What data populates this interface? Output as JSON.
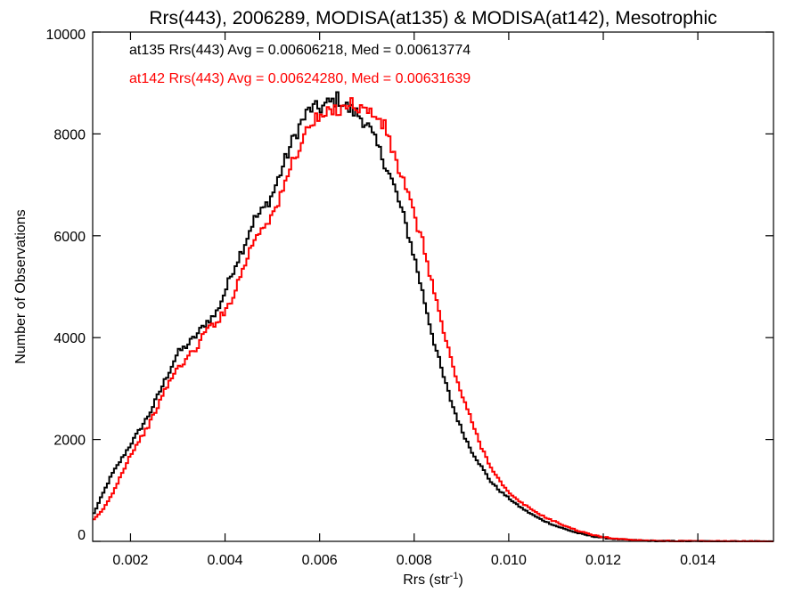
{
  "chart_data": {
    "type": "line",
    "title": "Rrs(443), 2006289, MODISA(at135) & MODISA(at142), Mesotrophic",
    "xlabel": "Rrs (str",
    "xlabel_superscript": "-1",
    "xlabel_suffix": ")",
    "ylabel": "Number of Observations",
    "xlim": [
      0.0012,
      0.0156
    ],
    "ylim": [
      0,
      10000
    ],
    "x_ticks": [
      0.002,
      0.004,
      0.006,
      0.008,
      0.01,
      0.012,
      0.014
    ],
    "x_tick_labels": [
      "0.002",
      "0.004",
      "0.006",
      "0.008",
      "0.010",
      "0.012",
      "0.014"
    ],
    "y_ticks": [
      0,
      2000,
      4000,
      6000,
      8000,
      10000
    ],
    "y_tick_labels": [
      "0",
      "2000",
      "4000",
      "6000",
      "8000",
      "10000"
    ],
    "grid": false,
    "legend_position": "top-left",
    "line_style": "step",
    "bin_width": 5e-05,
    "series": [
      {
        "name": "at135 Rrs(443) Avg = 0.00606218, Med = 0.00613774",
        "color": "#000000",
        "x": [
          0.0012,
          0.0014,
          0.0016,
          0.0018,
          0.002,
          0.0022,
          0.0024,
          0.0026,
          0.0028,
          0.003,
          0.0032,
          0.0034,
          0.0036,
          0.0038,
          0.004,
          0.0042,
          0.0044,
          0.0046,
          0.0048,
          0.005,
          0.0052,
          0.0054,
          0.0056,
          0.0058,
          0.006,
          0.0062,
          0.0064,
          0.0066,
          0.0068,
          0.007,
          0.0072,
          0.0074,
          0.0076,
          0.0078,
          0.008,
          0.0082,
          0.0084,
          0.0086,
          0.0088,
          0.009,
          0.0092,
          0.0094,
          0.0096,
          0.0098,
          0.01,
          0.0102,
          0.0104,
          0.0106,
          0.0108,
          0.011,
          0.0112,
          0.0114,
          0.0116,
          0.0118,
          0.012,
          0.0122,
          0.0124,
          0.0126,
          0.0128,
          0.013,
          0.0132,
          0.0134,
          0.0136,
          0.0138,
          0.014,
          0.0142,
          0.0144,
          0.0146,
          0.0148,
          0.015,
          0.0152,
          0.0154,
          0.0156
        ],
        "values": [
          500,
          900,
          1300,
          1600,
          1900,
          2200,
          2500,
          2900,
          3300,
          3700,
          3850,
          4050,
          4300,
          4450,
          4900,
          5400,
          5800,
          6300,
          6500,
          6800,
          7300,
          7800,
          8200,
          8500,
          8500,
          8600,
          8700,
          8500,
          8400,
          8200,
          7800,
          7400,
          6900,
          6300,
          5600,
          4800,
          4000,
          3300,
          2700,
          2200,
          1800,
          1500,
          1200,
          1000,
          850,
          700,
          580,
          470,
          380,
          300,
          240,
          180,
          130,
          95,
          70,
          50,
          35,
          25,
          18,
          12,
          8,
          6,
          4,
          3,
          2,
          1,
          1,
          1,
          0,
          0,
          0,
          0,
          0
        ]
      },
      {
        "name": "at142 Rrs(443) Avg = 0.00624280, Med = 0.00631639",
        "color": "#ff0000",
        "x": [
          0.0012,
          0.0014,
          0.0016,
          0.0018,
          0.002,
          0.0022,
          0.0024,
          0.0026,
          0.0028,
          0.003,
          0.0032,
          0.0034,
          0.0036,
          0.0038,
          0.004,
          0.0042,
          0.0044,
          0.0046,
          0.0048,
          0.005,
          0.0052,
          0.0054,
          0.0056,
          0.0058,
          0.006,
          0.0062,
          0.0064,
          0.0066,
          0.0068,
          0.007,
          0.0072,
          0.0074,
          0.0076,
          0.0078,
          0.008,
          0.0082,
          0.0084,
          0.0086,
          0.0088,
          0.009,
          0.0092,
          0.0094,
          0.0096,
          0.0098,
          0.01,
          0.0102,
          0.0104,
          0.0106,
          0.0108,
          0.011,
          0.0112,
          0.0114,
          0.0116,
          0.0118,
          0.012,
          0.0122,
          0.0124,
          0.0126,
          0.0128,
          0.013,
          0.0132,
          0.0134,
          0.0136,
          0.0138,
          0.014,
          0.0142,
          0.0144,
          0.0146,
          0.0148,
          0.015,
          0.0152,
          0.0154,
          0.0156
        ],
        "values": [
          400,
          600,
          900,
          1300,
          1700,
          2000,
          2300,
          2700,
          3100,
          3400,
          3600,
          3800,
          4150,
          4300,
          4500,
          4900,
          5400,
          5900,
          6200,
          6400,
          6800,
          7400,
          7800,
          8200,
          8300,
          8400,
          8500,
          8600,
          8550,
          8450,
          8350,
          8100,
          7500,
          7000,
          6400,
          5800,
          5000,
          4200,
          3500,
          2900,
          2400,
          1900,
          1500,
          1200,
          950,
          800,
          680,
          560,
          460,
          380,
          300,
          230,
          170,
          120,
          85,
          60,
          45,
          30,
          20,
          15,
          10,
          7,
          5,
          3,
          2,
          1,
          1,
          0,
          0,
          0,
          0,
          0,
          0
        ]
      }
    ]
  }
}
